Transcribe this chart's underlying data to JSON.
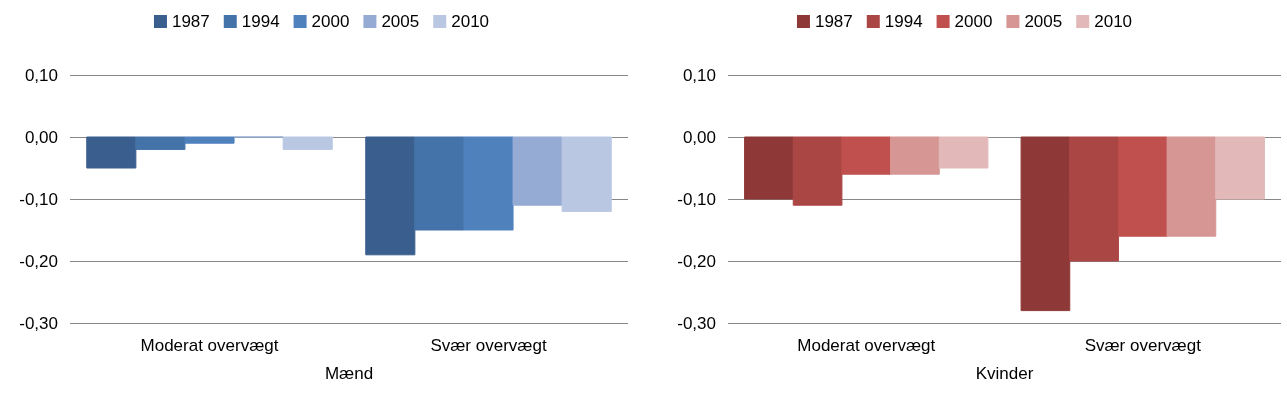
{
  "chart_data": [
    {
      "type": "bar",
      "xlabel": "Mænd",
      "categories": [
        "Moderat overvægt",
        "Svær overvægt"
      ],
      "series": [
        {
          "name": "1987",
          "color": "#3a5f8f",
          "values": [
            -0.05,
            -0.19
          ]
        },
        {
          "name": "1994",
          "color": "#4473a9",
          "values": [
            -0.02,
            -0.15
          ]
        },
        {
          "name": "2000",
          "color": "#4f81bd",
          "values": [
            -0.01,
            -0.15
          ]
        },
        {
          "name": "2005",
          "color": "#95abd4",
          "values": [
            0,
            -0.11
          ]
        },
        {
          "name": "2010",
          "color": "#b9c7e2",
          "values": [
            -0.02,
            -0.12
          ]
        }
      ],
      "ylim": [
        -0.3,
        0.1
      ],
      "yticks": [
        {
          "value": -0.3,
          "label": "-0,30"
        },
        {
          "value": -0.2,
          "label": "-0,20"
        },
        {
          "value": -0.1,
          "label": "-0,10"
        },
        {
          "value": 0,
          "label": "0,00"
        },
        {
          "value": 0.1,
          "label": "0,10"
        }
      ],
      "grid": "y",
      "legend": "top"
    },
    {
      "type": "bar",
      "xlabel": "Kvinder",
      "categories": [
        "Moderat overvægt",
        "Svær overvægt"
      ],
      "series": [
        {
          "name": "1987",
          "color": "#8e3937",
          "values": [
            -0.1,
            -0.28
          ]
        },
        {
          "name": "1994",
          "color": "#aa4644",
          "values": [
            -0.11,
            -0.2
          ]
        },
        {
          "name": "2000",
          "color": "#c0504d",
          "values": [
            -0.06,
            -0.16
          ]
        },
        {
          "name": "2005",
          "color": "#d69694",
          "values": [
            -0.06,
            -0.16
          ]
        },
        {
          "name": "2010",
          "color": "#e2b9b8",
          "values": [
            -0.05,
            -0.1
          ]
        }
      ],
      "ylim": [
        -0.3,
        0.1
      ],
      "yticks": [
        {
          "value": -0.3,
          "label": "-0,30"
        },
        {
          "value": -0.2,
          "label": "-0,20"
        },
        {
          "value": -0.1,
          "label": "-0,10"
        },
        {
          "value": 0,
          "label": "0,00"
        },
        {
          "value": 0.1,
          "label": "0,10"
        }
      ],
      "grid": "y",
      "legend": "top"
    }
  ]
}
